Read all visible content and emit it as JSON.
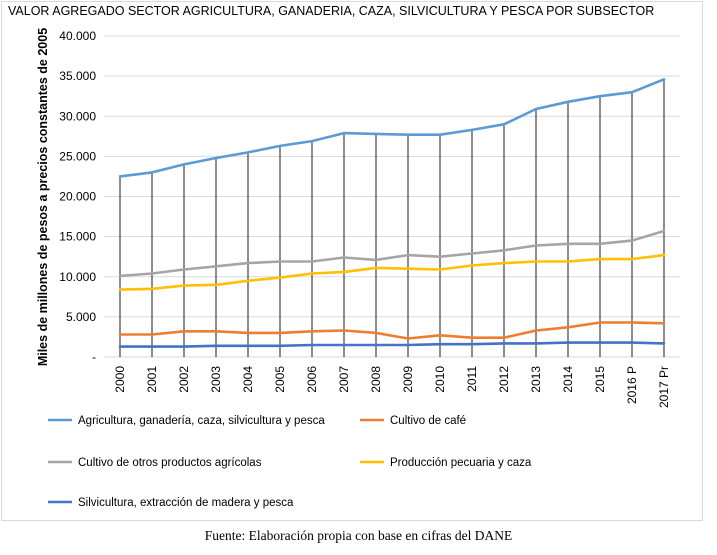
{
  "chart_data": {
    "type": "line",
    "title": "VALOR AGREGADO SECTOR AGRICULTURA, GANADERIA, CAZA, SILVICULTURA Y PESCA POR SUBSECTOR",
    "ylabel": "Miles de millones de pesos a precios constantes de 2005",
    "xlabel": "",
    "categories": [
      "2000",
      "2001",
      "2002",
      "2003",
      "2004",
      "2005",
      "2006",
      "2007",
      "2008",
      "2009",
      "2010",
      "2011",
      "2012",
      "2013",
      "2014",
      "2015",
      "2016 P",
      "2017 Pr"
    ],
    "ylim": [
      0,
      40000
    ],
    "yticks": [
      0,
      5000,
      10000,
      15000,
      20000,
      25000,
      30000,
      35000,
      40000
    ],
    "ytick_labels": [
      "-",
      "5.000",
      "10.000",
      "15.000",
      "20.000",
      "25.000",
      "30.000",
      "35.000",
      "40.000"
    ],
    "grid": true,
    "drop_lines": true,
    "legend_position": "bottom",
    "series": [
      {
        "name": "Agricultura, ganadería, caza, silvicultura y pesca",
        "color": "#5b9bd5",
        "values": [
          22500,
          23000,
          24000,
          24800,
          25500,
          26300,
          26900,
          27900,
          27800,
          27700,
          27700,
          28300,
          29000,
          30900,
          31800,
          32500,
          33000,
          34600
        ]
      },
      {
        "name": "Cultivo de café",
        "color": "#ed7d31",
        "values": [
          2800,
          2800,
          3200,
          3200,
          3000,
          3000,
          3200,
          3300,
          3000,
          2300,
          2700,
          2400,
          2400,
          3300,
          3700,
          4300,
          4300,
          4200
        ]
      },
      {
        "name": "Cultivo de otros productos agrícolas",
        "color": "#a5a5a5",
        "values": [
          10100,
          10400,
          10900,
          11300,
          11700,
          11900,
          11900,
          12400,
          12100,
          12700,
          12500,
          12900,
          13300,
          13900,
          14100,
          14100,
          14500,
          15700
        ]
      },
      {
        "name": "Producción pecuaria y caza",
        "color": "#ffc000",
        "values": [
          8400,
          8500,
          8900,
          9000,
          9500,
          9900,
          10400,
          10600,
          11100,
          11000,
          10900,
          11400,
          11700,
          11900,
          11900,
          12200,
          12200,
          12700
        ]
      },
      {
        "name": "Silvicultura, extracción de madera y pesca",
        "color": "#4472c4",
        "values": [
          1300,
          1300,
          1300,
          1400,
          1400,
          1400,
          1500,
          1500,
          1500,
          1500,
          1600,
          1600,
          1700,
          1700,
          1800,
          1800,
          1800,
          1700
        ]
      }
    ],
    "source": "Fuente: Elaboración propia con base en cifras del DANE"
  }
}
